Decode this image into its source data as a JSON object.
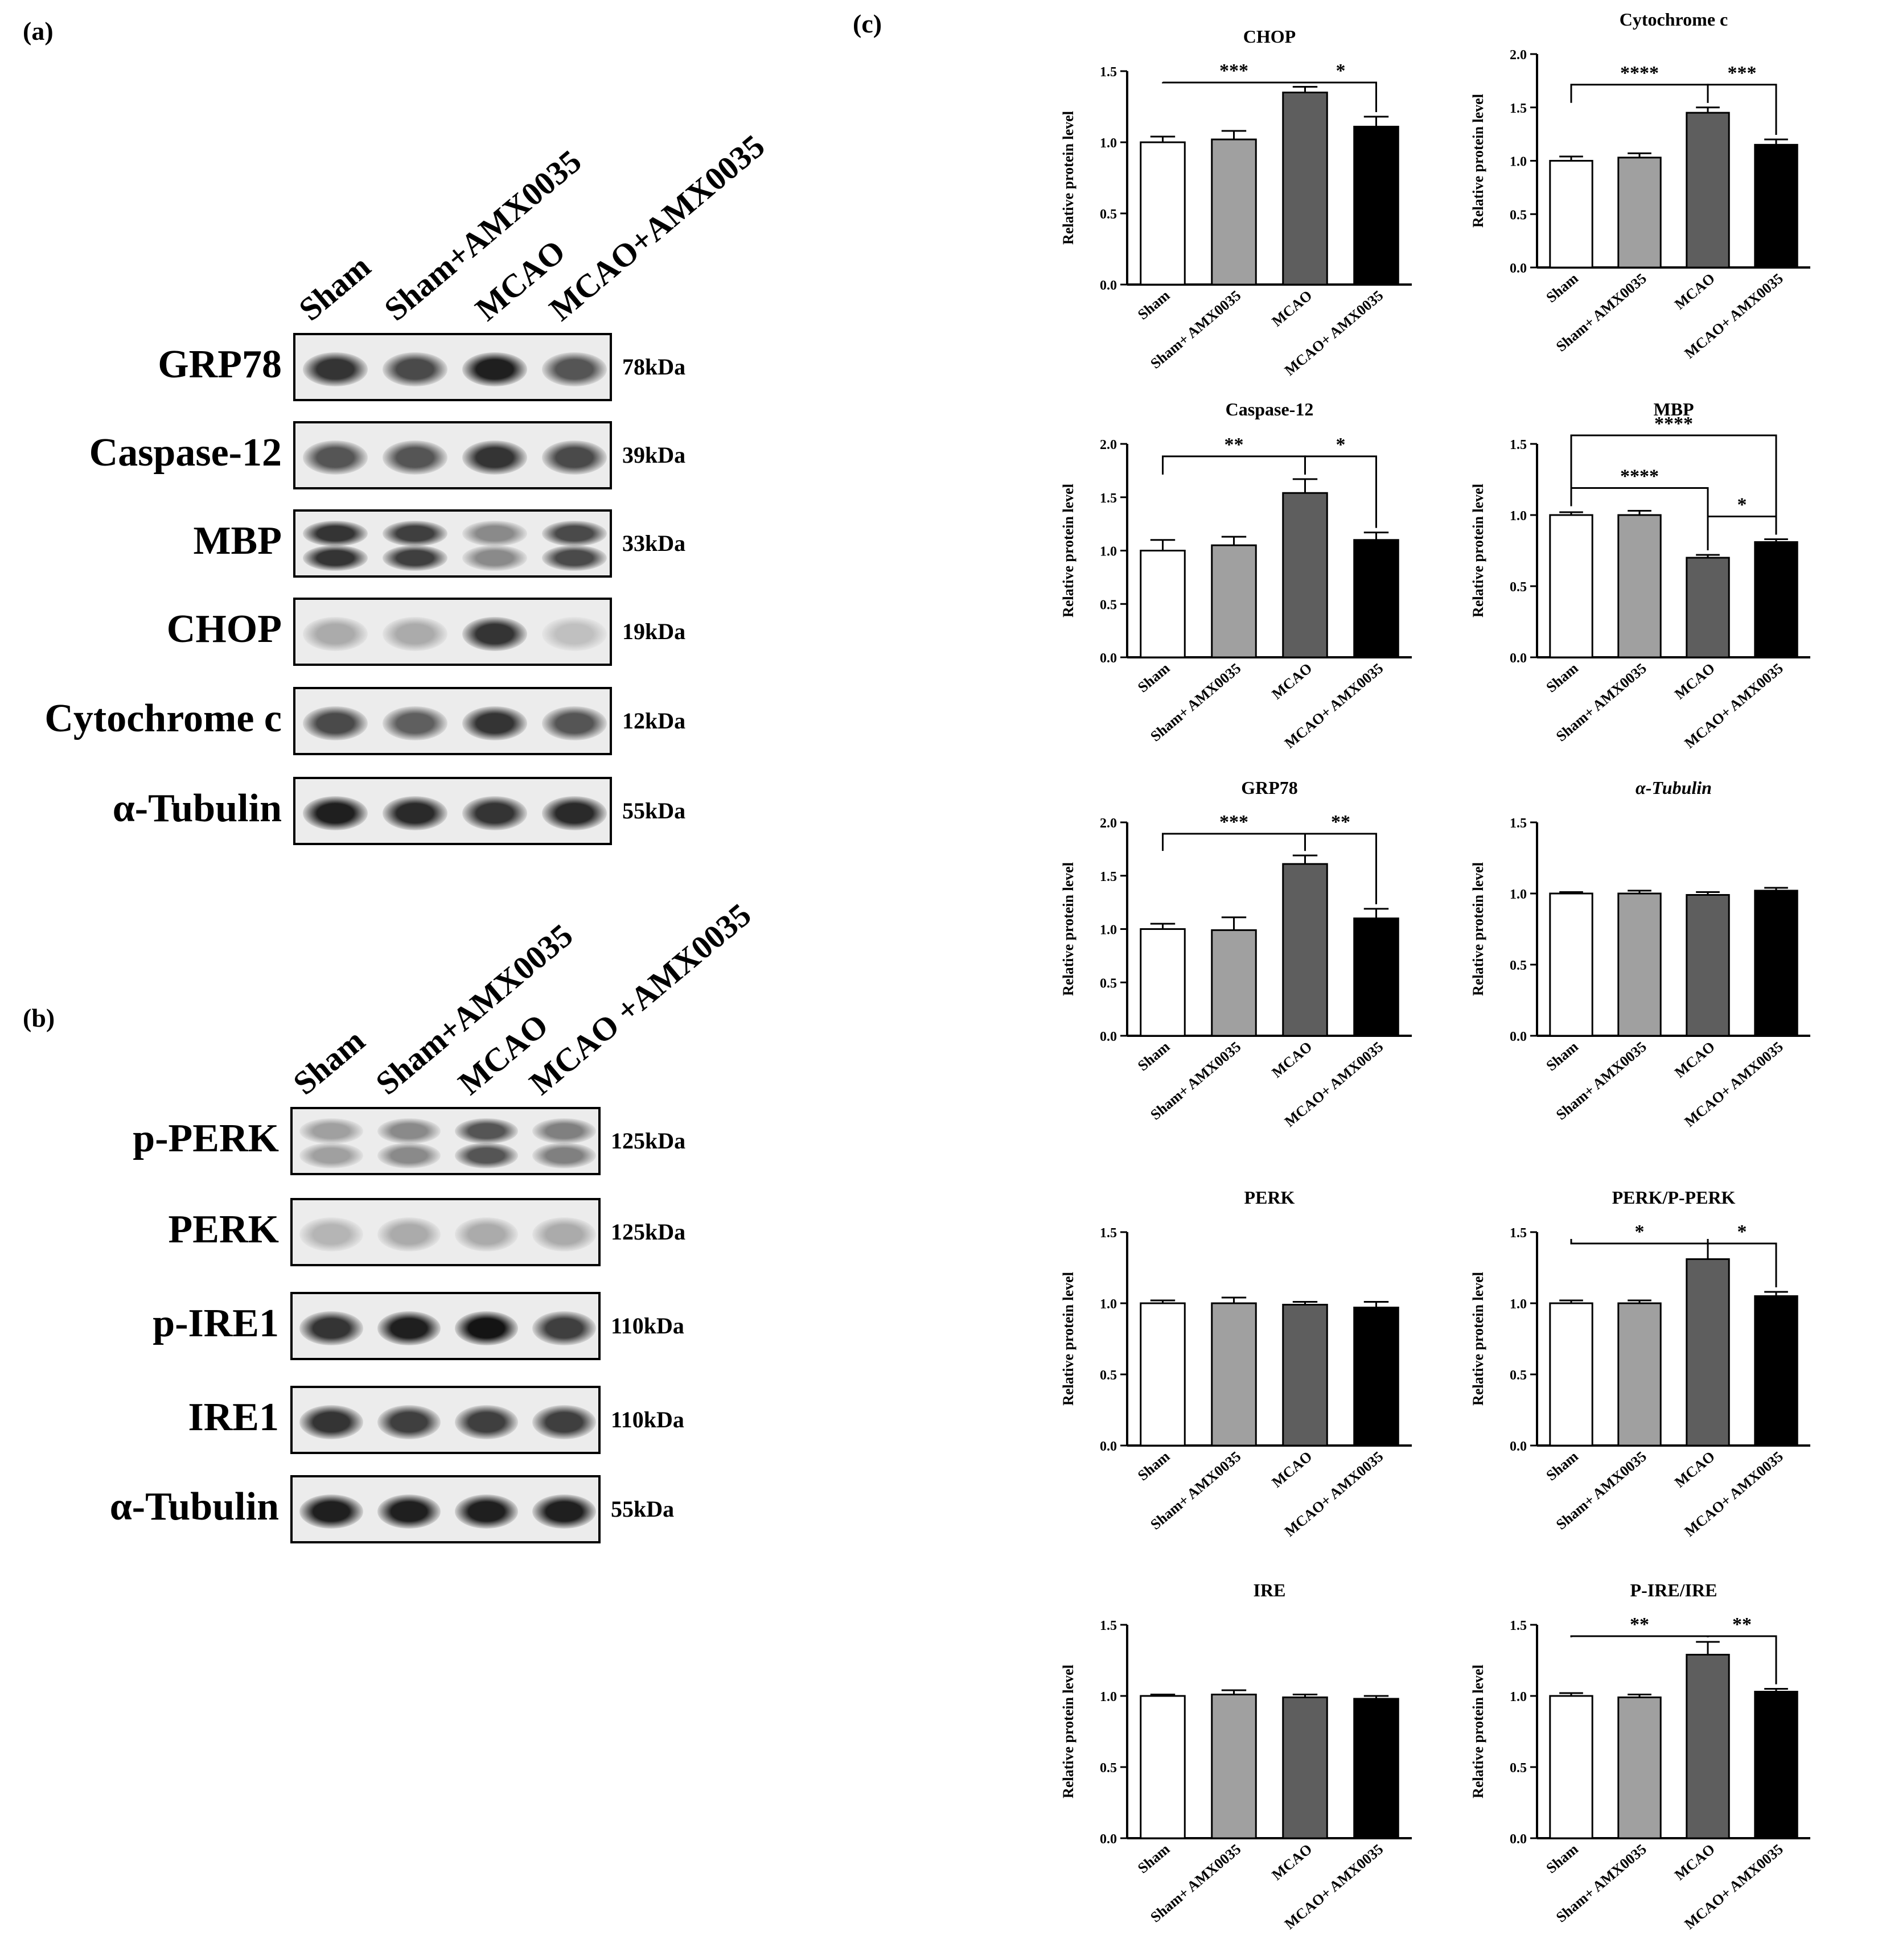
{
  "panels": {
    "a": {
      "letter": "(a)",
      "lanes": [
        "Sham",
        "Sham+AMX0035",
        "MCAO",
        "MCAO+AMX0035"
      ],
      "blots": [
        {
          "protein": "GRP78",
          "kda": "78kDa",
          "intensity": [
            0.85,
            0.75,
            0.95,
            0.7
          ],
          "double": false
        },
        {
          "protein": "Caspase-12",
          "kda": "39kDa",
          "intensity": [
            0.7,
            0.7,
            0.85,
            0.75
          ],
          "double": false
        },
        {
          "protein": "MBP",
          "kda": "33kDa",
          "intensity": [
            0.85,
            0.8,
            0.45,
            0.75
          ],
          "double": true
        },
        {
          "protein": "CHOP",
          "kda": "19kDa",
          "intensity": [
            0.3,
            0.3,
            0.85,
            0.2
          ],
          "double": false
        },
        {
          "protein": "Cytochrome c",
          "kda": "12kDa",
          "intensity": [
            0.75,
            0.65,
            0.85,
            0.7
          ],
          "double": false
        },
        {
          "protein": "α-Tubulin",
          "kda": "55kDa",
          "intensity": [
            0.95,
            0.9,
            0.85,
            0.9
          ],
          "double": false
        }
      ]
    },
    "b": {
      "letter": "(b)",
      "lanes": [
        "Sham",
        "Sham+AMX0035",
        "MCAO",
        "MCAO +AMX0035"
      ],
      "blots": [
        {
          "protein": "p-PERK",
          "kda": "125kDa",
          "intensity": [
            0.35,
            0.45,
            0.7,
            0.5
          ],
          "double": true
        },
        {
          "protein": "PERK",
          "kda": "125kDa",
          "intensity": [
            0.25,
            0.3,
            0.3,
            0.3
          ],
          "double": false
        },
        {
          "protein": "p-IRE1",
          "kda": "110kDa",
          "intensity": [
            0.85,
            0.95,
            1.0,
            0.8
          ],
          "double": false
        },
        {
          "protein": "IRE1",
          "kda": "110kDa",
          "intensity": [
            0.85,
            0.8,
            0.8,
            0.8
          ],
          "double": false
        },
        {
          "protein": "α-Tubulin",
          "kda": "55kDa",
          "intensity": [
            0.95,
            0.95,
            0.95,
            0.95
          ],
          "double": false
        }
      ]
    },
    "c": {
      "letter": "(c)"
    }
  },
  "colors": {
    "sham": "#ffffff",
    "sham_amx": "#a0a0a0",
    "mcao": "#5e5e5e",
    "mcao_amx": "#000000"
  },
  "chart_data": [
    {
      "type": "bar",
      "title": "CHOP",
      "ylabel": "Relative protein level",
      "ylim": [
        0,
        1.5
      ],
      "yticks": [
        "0.0",
        "0.5",
        "1.0",
        "1.5"
      ],
      "categories": [
        "Sham",
        "Sham+ AMX0035",
        "MCAO",
        "MCAO+ AMX0035"
      ],
      "values": [
        1.0,
        1.02,
        1.35,
        1.11
      ],
      "errors": [
        0.04,
        0.06,
        0.04,
        0.07
      ],
      "significance": [
        {
          "from": 0,
          "to": 2,
          "label": "***"
        },
        {
          "from": 2,
          "to": 3,
          "label": "*"
        }
      ]
    },
    {
      "type": "bar",
      "title": "Cytochrome c",
      "ylabel": "Relative protein level",
      "ylim": [
        0,
        2.0
      ],
      "yticks": [
        "0.0",
        "0.5",
        "1.0",
        "1.5",
        "2.0"
      ],
      "categories": [
        "Sham",
        "Sham+ AMX0035",
        "MCAO",
        "MCAO+ AMX0035"
      ],
      "values": [
        1.0,
        1.03,
        1.45,
        1.15
      ],
      "errors": [
        0.04,
        0.04,
        0.05,
        0.05
      ],
      "significance": [
        {
          "from": 0,
          "to": 2,
          "label": "****"
        },
        {
          "from": 2,
          "to": 3,
          "label": "***"
        }
      ]
    },
    {
      "type": "bar",
      "title": "Caspase-12",
      "ylabel": "Relative protein level",
      "ylim": [
        0,
        2.0
      ],
      "yticks": [
        "0.0",
        "0.5",
        "1.0",
        "1.5",
        "2.0"
      ],
      "categories": [
        "Sham",
        "Sham+ AMX0035",
        "MCAO",
        "MCAO+ AMX0035"
      ],
      "values": [
        1.0,
        1.05,
        1.54,
        1.1
      ],
      "errors": [
        0.1,
        0.08,
        0.13,
        0.07
      ],
      "significance": [
        {
          "from": 0,
          "to": 2,
          "label": "**"
        },
        {
          "from": 2,
          "to": 3,
          "label": "*"
        }
      ]
    },
    {
      "type": "bar",
      "title": "MBP",
      "ylabel": "Relative protein level",
      "ylim": [
        0,
        1.5
      ],
      "yticks": [
        "0.0",
        "0.5",
        "1.0",
        "1.5"
      ],
      "categories": [
        "Sham",
        "Sham+ AMX0035",
        "MCAO",
        "MCAO+ AMX0035"
      ],
      "values": [
        1.0,
        1.0,
        0.7,
        0.81
      ],
      "errors": [
        0.02,
        0.03,
        0.02,
        0.02
      ],
      "significance": [
        {
          "from": 0,
          "to": 2,
          "label": "****"
        },
        {
          "from": 2,
          "to": 3,
          "label": "*"
        },
        {
          "from": 0,
          "to": 3,
          "label": "****"
        }
      ]
    },
    {
      "type": "bar",
      "title": "GRP78",
      "ylabel": "Relative protein level",
      "ylim": [
        0,
        2.0
      ],
      "yticks": [
        "0.0",
        "0.5",
        "1.0",
        "1.5",
        "2.0"
      ],
      "categories": [
        "Sham",
        "Sham+ AMX0035",
        "MCAO",
        "MCAO+ AMX0035"
      ],
      "values": [
        1.0,
        0.99,
        1.61,
        1.1
      ],
      "errors": [
        0.05,
        0.12,
        0.08,
        0.09
      ],
      "significance": [
        {
          "from": 0,
          "to": 2,
          "label": "***"
        },
        {
          "from": 2,
          "to": 3,
          "label": "**"
        }
      ]
    },
    {
      "type": "bar",
      "title": "α-Tubulin",
      "ylabel": "Relative protein level",
      "ylim": [
        0,
        1.5
      ],
      "yticks": [
        "0.0",
        "0.5",
        "1.0",
        "1.5"
      ],
      "categories": [
        "Sham",
        "Sham+ AMX0035",
        "MCAO",
        "MCAO+ AMX0035"
      ],
      "values": [
        1.0,
        1.0,
        0.99,
        1.02
      ],
      "errors": [
        0.01,
        0.02,
        0.02,
        0.02
      ],
      "significance": []
    },
    {
      "type": "bar",
      "title": "PERK",
      "ylabel": "Relative protein level",
      "ylim": [
        0,
        1.5
      ],
      "yticks": [
        "0.0",
        "0.5",
        "1.0",
        "1.5"
      ],
      "categories": [
        "Sham",
        "Sham+ AMX0035",
        "MCAO",
        "MCAO+ AMX0035"
      ],
      "values": [
        1.0,
        1.0,
        0.99,
        0.97
      ],
      "errors": [
        0.02,
        0.04,
        0.02,
        0.04
      ],
      "significance": []
    },
    {
      "type": "bar",
      "title": "PERK/P-PERK",
      "ylabel": "Relative protein level",
      "ylim": [
        0,
        1.5
      ],
      "yticks": [
        "0.0",
        "0.5",
        "1.0",
        "1.5"
      ],
      "categories": [
        "Sham",
        "Sham+ AMX0035",
        "MCAO",
        "MCAO+ AMX0035"
      ],
      "values": [
        1.0,
        1.0,
        1.31,
        1.05
      ],
      "errors": [
        0.02,
        0.02,
        0.11,
        0.03
      ],
      "significance": [
        {
          "from": 0,
          "to": 2,
          "label": "*"
        },
        {
          "from": 2,
          "to": 3,
          "label": "*"
        }
      ]
    },
    {
      "type": "bar",
      "title": "IRE",
      "ylabel": "Relative protein level",
      "ylim": [
        0,
        1.5
      ],
      "yticks": [
        "0.0",
        "0.5",
        "1.0",
        "1.5"
      ],
      "categories": [
        "Sham",
        "Sham+ AMX0035",
        "MCAO",
        "MCAO+ AMX0035"
      ],
      "values": [
        1.0,
        1.01,
        0.99,
        0.98
      ],
      "errors": [
        0.01,
        0.03,
        0.02,
        0.02
      ],
      "significance": []
    },
    {
      "type": "bar",
      "title": "P-IRE/IRE",
      "ylabel": "Relative protein level",
      "ylim": [
        0,
        1.5
      ],
      "yticks": [
        "0.0",
        "0.5",
        "1.0",
        "1.5"
      ],
      "categories": [
        "Sham",
        "Sham+ AMX0035",
        "MCAO",
        "MCAO+ AMX0035"
      ],
      "values": [
        1.0,
        0.99,
        1.29,
        1.03
      ],
      "errors": [
        0.02,
        0.02,
        0.09,
        0.02
      ],
      "significance": [
        {
          "from": 0,
          "to": 2,
          "label": "**"
        },
        {
          "from": 2,
          "to": 3,
          "label": "**"
        }
      ]
    }
  ]
}
